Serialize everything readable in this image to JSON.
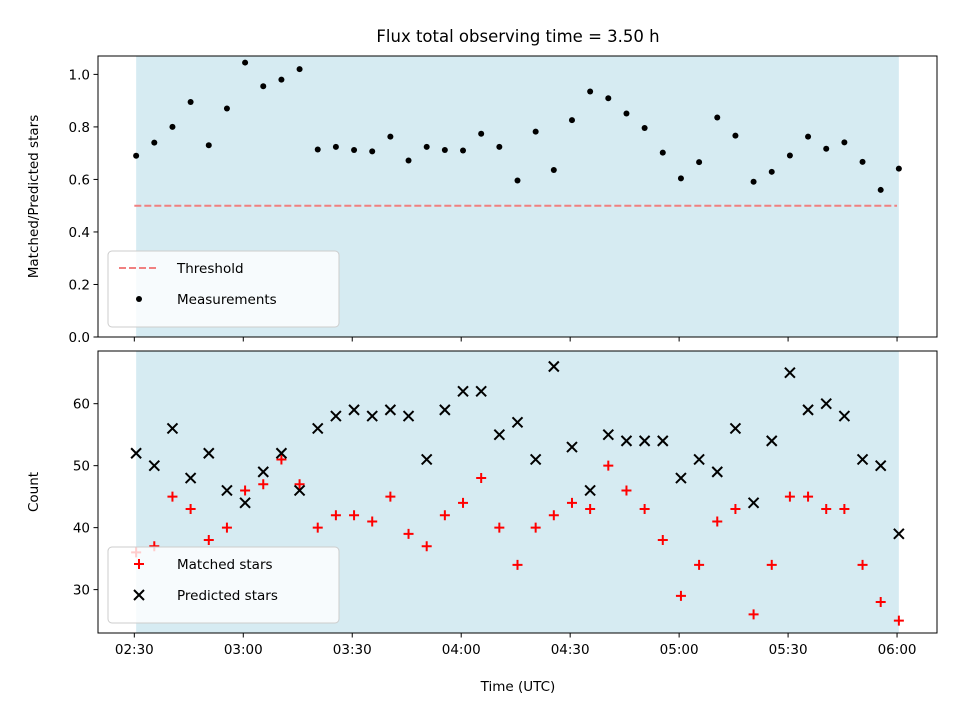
{
  "chart_data": {
    "type": "scatter",
    "title": "Flux total observing time = 3.50 h",
    "xlabel": "Time (UTC)",
    "x_tick_labels": [
      "02:30",
      "03:00",
      "03:30",
      "04:00",
      "04:30",
      "05:00",
      "05:30",
      "06:00"
    ],
    "x_ticks_minutes": [
      150,
      180,
      210,
      240,
      270,
      300,
      330,
      360
    ],
    "xlim_minutes": [
      140,
      371
    ],
    "shaded_interval_minutes": [
      150.5,
      360.5
    ],
    "shade_color": "#add8e6",
    "grid": false,
    "panels": [
      {
        "ylabel": "Matched/Predicted stars",
        "ylim": [
          0.0,
          1.07
        ],
        "y_ticks": [
          0.0,
          0.2,
          0.4,
          0.6,
          0.8,
          1.0
        ],
        "y_tick_labels": [
          "0.0",
          "0.2",
          "0.4",
          "0.6",
          "0.8",
          "1.0"
        ],
        "legend_position": "lower-left",
        "threshold": {
          "name": "Threshold",
          "value": 0.5,
          "x_range": [
            150,
            360
          ],
          "color": "#f08080",
          "style": "dashed"
        },
        "series": [
          {
            "name": "Measurements",
            "marker": "dot",
            "color": "#000000",
            "x": [
              150.5,
              155.5,
              160.5,
              165.5,
              170.5,
              175.5,
              180.5,
              185.5,
              190.5,
              195.5,
              200.5,
              205.5,
              210.5,
              215.5,
              220.5,
              225.5,
              230.5,
              235.5,
              240.5,
              245.5,
              250.5,
              255.5,
              260.5,
              265.5,
              270.5,
              275.5,
              280.5,
              285.5,
              290.5,
              295.5,
              300.5,
              305.5,
              310.5,
              315.5,
              320.5,
              325.5,
              330.5,
              335.5,
              340.5,
              345.5,
              350.5,
              355.5,
              360.5
            ],
            "y": [
              0.69,
              0.74,
              0.8,
              0.895,
              0.73,
              0.87,
              1.045,
              0.955,
              0.98,
              1.02,
              0.714,
              0.724,
              0.712,
              0.707,
              0.763,
              0.672,
              0.724,
              0.712,
              0.71,
              0.774,
              0.724,
              0.596,
              0.782,
              0.636,
              0.826,
              0.935,
              0.909,
              0.851,
              0.796,
              0.702,
              0.604,
              0.666,
              0.836,
              0.767,
              0.591,
              0.629,
              0.691,
              0.763,
              0.717,
              0.741,
              0.667,
              0.56,
              0.641
            ]
          }
        ]
      },
      {
        "ylabel": "Count",
        "ylim": [
          23,
          68.5
        ],
        "y_ticks": [
          30,
          40,
          50,
          60
        ],
        "y_tick_labels": [
          "30",
          "40",
          "50",
          "60"
        ],
        "legend_position": "lower-left",
        "series": [
          {
            "name": "Matched stars",
            "marker": "plus",
            "color": "#ff0000",
            "x": [
              150.5,
              155.5,
              160.5,
              165.5,
              170.5,
              175.5,
              180.5,
              185.5,
              190.5,
              195.5,
              200.5,
              205.5,
              210.5,
              215.5,
              220.5,
              225.5,
              230.5,
              235.5,
              240.5,
              245.5,
              250.5,
              255.5,
              260.5,
              265.5,
              270.5,
              275.5,
              280.5,
              285.5,
              290.5,
              295.5,
              300.5,
              305.5,
              310.5,
              315.5,
              320.5,
              325.5,
              330.5,
              335.5,
              340.5,
              345.5,
              350.5,
              355.5,
              360.5
            ],
            "y": [
              36,
              37,
              45,
              43,
              38,
              40,
              46,
              47,
              51,
              47,
              40,
              42,
              42,
              41,
              45,
              39,
              37,
              42,
              44,
              48,
              40,
              34,
              40,
              42,
              44,
              43,
              50,
              46,
              43,
              38,
              29,
              34,
              41,
              43,
              26,
              34,
              45,
              45,
              43,
              43,
              34,
              28,
              25
            ]
          },
          {
            "name": "Predicted stars",
            "marker": "x",
            "color": "#000000",
            "x": [
              150.5,
              155.5,
              160.5,
              165.5,
              170.5,
              175.5,
              180.5,
              185.5,
              190.5,
              195.5,
              200.5,
              205.5,
              210.5,
              215.5,
              220.5,
              225.5,
              230.5,
              235.5,
              240.5,
              245.5,
              250.5,
              255.5,
              260.5,
              265.5,
              270.5,
              275.5,
              280.5,
              285.5,
              290.5,
              295.5,
              300.5,
              305.5,
              310.5,
              315.5,
              320.5,
              325.5,
              330.5,
              335.5,
              340.5,
              345.5,
              350.5,
              355.5,
              360.5
            ],
            "y": [
              52,
              50,
              56,
              48,
              52,
              46,
              44,
              49,
              52,
              46,
              56,
              58,
              59,
              58,
              59,
              58,
              51,
              59,
              62,
              62,
              55,
              57,
              51,
              66,
              53,
              46,
              55,
              54,
              54,
              54,
              48,
              51,
              49,
              56,
              44,
              54,
              65,
              59,
              60,
              58,
              51,
              50,
              39
            ]
          }
        ]
      }
    ]
  }
}
